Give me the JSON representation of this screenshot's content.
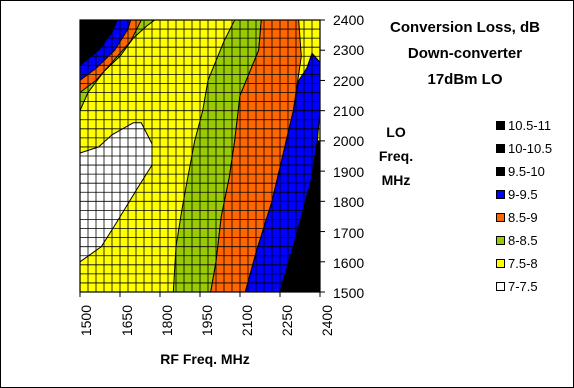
{
  "chart_data": {
    "type": "heatmap",
    "title_lines": [
      "Conversion Loss, dB",
      "Down-converter",
      "17dBm LO"
    ],
    "ylabel_lines": [
      "LO",
      "Freq.",
      "MHz"
    ],
    "xlabel": "RF Freq. MHz",
    "x_ticks": [
      "1500",
      "1650",
      "1800",
      "1950",
      "2100",
      "2250",
      "2400"
    ],
    "y_ticks": [
      "2400",
      "2300",
      "2200",
      "2100",
      "2000",
      "1900",
      "1800",
      "1700",
      "1600",
      "1500"
    ],
    "xlim": [
      1500,
      2400
    ],
    "ylim": [
      1500,
      2400
    ],
    "grid": true,
    "legend_position": "right",
    "legend": [
      {
        "label": "10.5-11",
        "color": "#000000"
      },
      {
        "label": "10-10.5",
        "color": "#000000"
      },
      {
        "label": "9.5-10",
        "color": "#000000"
      },
      {
        "label": "9-9.5",
        "color": "#0000ff"
      },
      {
        "label": "8.5-9",
        "color": "#ff6600"
      },
      {
        "label": "8-8.5",
        "color": "#99cc00"
      },
      {
        "label": "7.5-8",
        "color": "#ffff00"
      },
      {
        "label": "7-7.5",
        "color": "#ffffff"
      }
    ],
    "regions": [
      {
        "band": "7-7.5",
        "polygon": [
          [
            1500,
            1600
          ],
          [
            1580,
            1650
          ],
          [
            1630,
            1720
          ],
          [
            1720,
            1850
          ],
          [
            1770,
            1920
          ],
          [
            1770,
            1990
          ],
          [
            1730,
            2060
          ],
          [
            1700,
            2060
          ],
          [
            1620,
            2020
          ],
          [
            1570,
            1980
          ],
          [
            1500,
            1960
          ]
        ]
      },
      {
        "band": "8-8.5",
        "polygon": [
          [
            1850,
            1500
          ],
          [
            1990,
            1500
          ],
          [
            2010,
            1600
          ],
          [
            2030,
            1750
          ],
          [
            2060,
            1880
          ],
          [
            2080,
            2000
          ],
          [
            2100,
            2150
          ],
          [
            2170,
            2300
          ],
          [
            2180,
            2400
          ],
          [
            2080,
            2400
          ],
          [
            2040,
            2330
          ],
          [
            1980,
            2200
          ],
          [
            1960,
            2100
          ],
          [
            1930,
            2000
          ],
          [
            1900,
            1860
          ],
          [
            1880,
            1760
          ],
          [
            1860,
            1650
          ]
        ]
      },
      {
        "band": "8.5-9",
        "polygon": [
          [
            1990,
            1500
          ],
          [
            2120,
            1500
          ],
          [
            2160,
            1630
          ],
          [
            2220,
            1800
          ],
          [
            2260,
            1950
          ],
          [
            2300,
            2100
          ],
          [
            2330,
            2280
          ],
          [
            2320,
            2400
          ],
          [
            2180,
            2400
          ],
          [
            2170,
            2300
          ],
          [
            2100,
            2150
          ],
          [
            2080,
            2000
          ],
          [
            2060,
            1880
          ],
          [
            2030,
            1750
          ],
          [
            2010,
            1600
          ]
        ]
      },
      {
        "band": "9-9.5",
        "polygon": [
          [
            2120,
            1500
          ],
          [
            2250,
            1500
          ],
          [
            2300,
            1650
          ],
          [
            2340,
            1780
          ],
          [
            2370,
            1880
          ],
          [
            2390,
            2000
          ],
          [
            2400,
            2100
          ],
          [
            2400,
            2260
          ],
          [
            2370,
            2290
          ],
          [
            2350,
            2240
          ],
          [
            2320,
            2200
          ],
          [
            2300,
            2100
          ],
          [
            2260,
            1950
          ],
          [
            2220,
            1800
          ],
          [
            2160,
            1630
          ]
        ]
      },
      {
        "band": "9.5-10",
        "polygon": [
          [
            2250,
            1500
          ],
          [
            2400,
            1500
          ],
          [
            2400,
            2000
          ],
          [
            2390,
            2000
          ],
          [
            2370,
            1880
          ],
          [
            2340,
            1780
          ],
          [
            2300,
            1650
          ]
        ]
      },
      {
        "band": "8-8.5",
        "polygon": [
          [
            1500,
            2100
          ],
          [
            1530,
            2160
          ],
          [
            1590,
            2230
          ],
          [
            1650,
            2280
          ],
          [
            1700,
            2340
          ],
          [
            1750,
            2380
          ],
          [
            1780,
            2400
          ],
          [
            1500,
            2400
          ]
        ]
      },
      {
        "band": "8.5-9",
        "polygon": [
          [
            1500,
            2160
          ],
          [
            1560,
            2200
          ],
          [
            1630,
            2270
          ],
          [
            1690,
            2330
          ],
          [
            1730,
            2400
          ],
          [
            1500,
            2400
          ]
        ]
      },
      {
        "band": "9-9.5",
        "polygon": [
          [
            1500,
            2200
          ],
          [
            1560,
            2240
          ],
          [
            1630,
            2300
          ],
          [
            1680,
            2370
          ],
          [
            1690,
            2400
          ],
          [
            1500,
            2400
          ]
        ]
      },
      {
        "band": "10-10.5",
        "polygon": [
          [
            1500,
            2250
          ],
          [
            1570,
            2300
          ],
          [
            1620,
            2360
          ],
          [
            1640,
            2400
          ],
          [
            1500,
            2400
          ]
        ]
      }
    ]
  }
}
